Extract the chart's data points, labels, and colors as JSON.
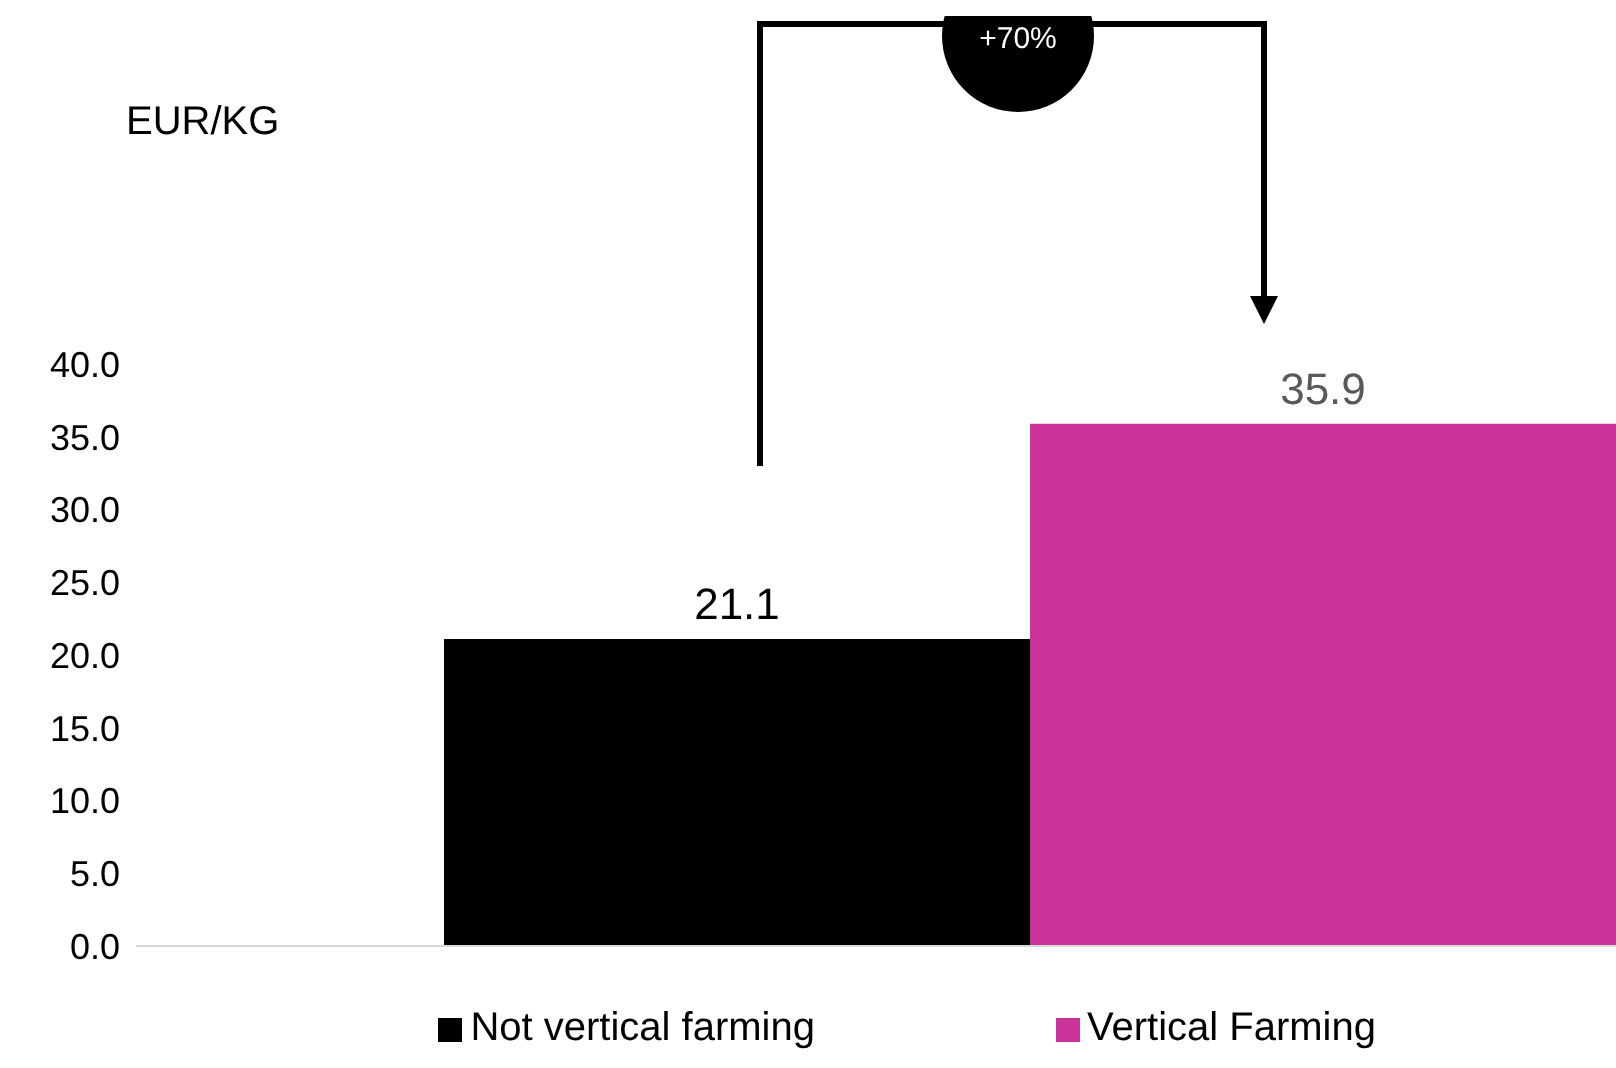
{
  "chart_data": {
    "type": "bar",
    "categories": [
      null
    ],
    "series": [
      {
        "name": "Not vertical farming",
        "color": "#000000",
        "values": [
          21.1
        ]
      },
      {
        "name": "Vertical Farming",
        "color": "#cc3399",
        "values": [
          35.9
        ]
      }
    ],
    "ylim": [
      0,
      40
    ],
    "yticks": [
      {
        "value": 0,
        "label": "0.0"
      },
      {
        "value": 5,
        "label": "5.0"
      },
      {
        "value": 10,
        "label": "10.0"
      },
      {
        "value": 15,
        "label": "15.0"
      },
      {
        "value": 20,
        "label": "20.0"
      },
      {
        "value": 25,
        "label": "25.0"
      },
      {
        "value": 30,
        "label": "30.0"
      },
      {
        "value": 35,
        "label": "35.0"
      },
      {
        "value": 40,
        "label": "40.0"
      }
    ],
    "data_labels": true,
    "grid": false,
    "legend": "bottom",
    "annotations": [
      "EUR/KG",
      "+70%"
    ]
  }
}
